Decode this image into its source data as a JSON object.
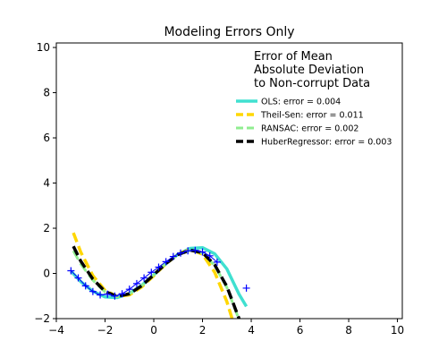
{
  "chart_data": {
    "type": "line",
    "title": "Modeling Errors Only",
    "xlabel": "",
    "ylabel": "",
    "xlim": [
      -4,
      10.2
    ],
    "ylim": [
      -2,
      10.2
    ],
    "xticks": [
      -4,
      -2,
      0,
      2,
      4,
      6,
      8,
      10
    ],
    "yticks": [
      -2,
      0,
      2,
      4,
      6,
      8,
      10
    ],
    "grid": false,
    "legend": {
      "placement": "top-right",
      "title_lines": [
        "Error of Mean",
        "Absolute Deviation",
        "to Non-corrupt Data"
      ]
    },
    "scatter": {
      "name": "data",
      "color": "#0000ff",
      "marker": "+",
      "points": [
        [
          -3.4,
          0.12
        ],
        [
          -3.1,
          -0.2
        ],
        [
          -2.8,
          -0.55
        ],
        [
          -2.5,
          -0.8
        ],
        [
          -2.2,
          -0.95
        ],
        [
          -1.9,
          -0.92
        ],
        [
          -1.6,
          -1.0
        ],
        [
          -1.3,
          -0.9
        ],
        [
          -1.0,
          -0.7
        ],
        [
          -0.7,
          -0.45
        ],
        [
          -0.4,
          -0.2
        ],
        [
          -0.1,
          0.05
        ],
        [
          0.2,
          0.28
        ],
        [
          0.5,
          0.52
        ],
        [
          0.8,
          0.75
        ],
        [
          1.1,
          0.9
        ],
        [
          1.4,
          1.0
        ],
        [
          1.7,
          1.02
        ],
        [
          2.0,
          0.95
        ],
        [
          2.3,
          0.78
        ],
        [
          2.6,
          0.5
        ],
        [
          3.8,
          -0.65
        ]
      ]
    },
    "series": [
      {
        "name": "OLS: error = 0.004",
        "color": "#40e0d0",
        "dash": "solid",
        "width": 3.5,
        "x": [
          -3.4,
          -3.0,
          -2.5,
          -2.0,
          -1.5,
          -1.0,
          -0.5,
          0.0,
          0.5,
          1.0,
          1.5,
          2.0,
          2.5,
          3.0,
          3.5,
          3.8
        ],
        "y": [
          0.1,
          -0.36,
          -0.79,
          -1.04,
          -1.07,
          -0.89,
          -0.53,
          -0.06,
          0.43,
          0.85,
          1.11,
          1.14,
          0.87,
          0.2,
          -0.92,
          -1.46
        ]
      },
      {
        "name": "Theil-Sen: error = 0.011",
        "color": "#ffd700",
        "dash": "dashed",
        "width": 3.5,
        "x": [
          -3.3,
          -3.0,
          -2.5,
          -2.0,
          -1.5,
          -1.0,
          -0.5,
          0.0,
          0.5,
          1.0,
          1.5,
          2.0,
          2.5,
          3.0,
          3.5
        ],
        "y": [
          1.8,
          0.95,
          -0.1,
          -0.75,
          -1.02,
          -0.95,
          -0.6,
          -0.1,
          0.42,
          0.86,
          1.06,
          0.85,
          0.05,
          -1.25,
          -3.0
        ]
      },
      {
        "name": "RANSAC: error = 0.002",
        "color": "#90ee90",
        "dash": "dashed",
        "width": 3,
        "x": [
          -3.3,
          -3.0,
          -2.5,
          -2.0,
          -1.5,
          -1.0,
          -0.5,
          0.0,
          0.5,
          1.0,
          1.5,
          2.0,
          2.5,
          3.0,
          3.5
        ],
        "y": [
          1.0,
          0.42,
          -0.3,
          -0.82,
          -1.02,
          -0.9,
          -0.55,
          -0.06,
          0.44,
          0.84,
          1.02,
          0.9,
          0.35,
          -0.62,
          -2.05
        ]
      },
      {
        "name": "HuberRegressor: error = 0.003",
        "color": "#000000",
        "dash": "dashed",
        "width": 3.5,
        "x": [
          -3.3,
          -3.0,
          -2.5,
          -2.0,
          -1.5,
          -1.0,
          -0.5,
          0.0,
          0.5,
          1.0,
          1.5,
          2.0,
          2.5,
          3.0,
          3.5
        ],
        "y": [
          1.2,
          0.55,
          -0.25,
          -0.8,
          -1.02,
          -0.9,
          -0.55,
          -0.06,
          0.44,
          0.84,
          1.03,
          0.92,
          0.38,
          -0.58,
          -2.0
        ]
      }
    ]
  }
}
